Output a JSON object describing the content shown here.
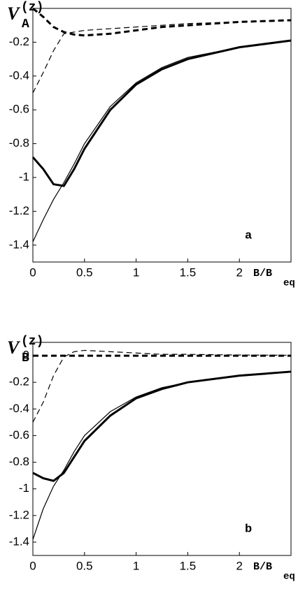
{
  "chart_data": [
    {
      "type": "line",
      "panel_label": "a",
      "ylabel": {
        "main": "V",
        "sup": "(z)",
        "sub": "A"
      },
      "xlabel": {
        "main": "B/B",
        "sub": "eq"
      },
      "xlim": [
        0,
        2.5
      ],
      "xticks": [
        0,
        0.5,
        1,
        1.5,
        2
      ],
      "ylim": [
        -1.5,
        0
      ],
      "yticks": [
        -0.2,
        -0.4,
        -0.6,
        -0.8,
        -1,
        -1.2,
        -1.4
      ],
      "x": [
        0,
        0.1,
        0.2,
        0.3,
        0.4,
        0.5,
        0.75,
        1,
        1.25,
        1.5,
        2,
        2.5
      ],
      "series": [
        {
          "color": "#000",
          "width": 3,
          "dash": false,
          "values": [
            -0.88,
            -0.95,
            -1.04,
            -1.05,
            -0.95,
            -0.83,
            -0.6,
            -0.45,
            -0.36,
            -0.3,
            -0.23,
            -0.19
          ]
        },
        {
          "color": "#000",
          "width": 1.2,
          "dash": false,
          "values": [
            -1.38,
            -1.25,
            -1.13,
            -1.03,
            -0.92,
            -0.8,
            -0.58,
            -0.44,
            -0.35,
            -0.29,
            -0.23,
            -0.19
          ]
        },
        {
          "color": "#000",
          "width": 3,
          "dash": true,
          "values": [
            0,
            -0.05,
            -0.11,
            -0.14,
            -0.155,
            -0.16,
            -0.15,
            -0.13,
            -0.11,
            -0.1,
            -0.08,
            -0.07
          ]
        },
        {
          "color": "#000",
          "width": 1.2,
          "dash": true,
          "values": [
            -0.5,
            -0.38,
            -0.25,
            -0.15,
            -0.14,
            -0.13,
            -0.12,
            -0.11,
            -0.1,
            -0.09,
            -0.08,
            -0.07
          ]
        }
      ]
    },
    {
      "type": "line",
      "panel_label": "b",
      "ylabel": {
        "main": "V",
        "sup": "(z)",
        "sub": "B"
      },
      "xlabel": {
        "main": "B/B",
        "sub": "eq"
      },
      "xlim": [
        0,
        2.5
      ],
      "xticks": [
        0,
        0.5,
        1,
        1.5,
        2
      ],
      "ylim": [
        -1.5,
        0.1
      ],
      "yticks": [
        0,
        -0.2,
        -0.4,
        -0.6,
        -0.8,
        -1,
        -1.2,
        -1.4
      ],
      "x": [
        0,
        0.1,
        0.2,
        0.3,
        0.4,
        0.5,
        0.75,
        1,
        1.25,
        1.5,
        2,
        2.5
      ],
      "series": [
        {
          "color": "#000",
          "width": 3,
          "dash": false,
          "values": [
            -0.88,
            -0.92,
            -0.94,
            -0.88,
            -0.76,
            -0.64,
            -0.45,
            -0.32,
            -0.25,
            -0.2,
            -0.15,
            -0.12
          ]
        },
        {
          "color": "#000",
          "width": 1.2,
          "dash": false,
          "values": [
            -1.38,
            -1.15,
            -0.98,
            -0.86,
            -0.72,
            -0.6,
            -0.42,
            -0.31,
            -0.24,
            -0.2,
            -0.15,
            -0.12
          ]
        },
        {
          "color": "#000",
          "width": 3,
          "dash": true,
          "values": [
            0,
            0,
            0,
            0,
            0,
            0,
            0,
            0,
            0,
            0,
            0,
            0
          ]
        },
        {
          "color": "#000",
          "width": 1.2,
          "dash": true,
          "values": [
            -0.5,
            -0.35,
            -0.15,
            -0.01,
            0.03,
            0.04,
            0.03,
            0.02,
            0.01,
            0.01,
            0.005,
            0.003
          ]
        }
      ]
    }
  ]
}
